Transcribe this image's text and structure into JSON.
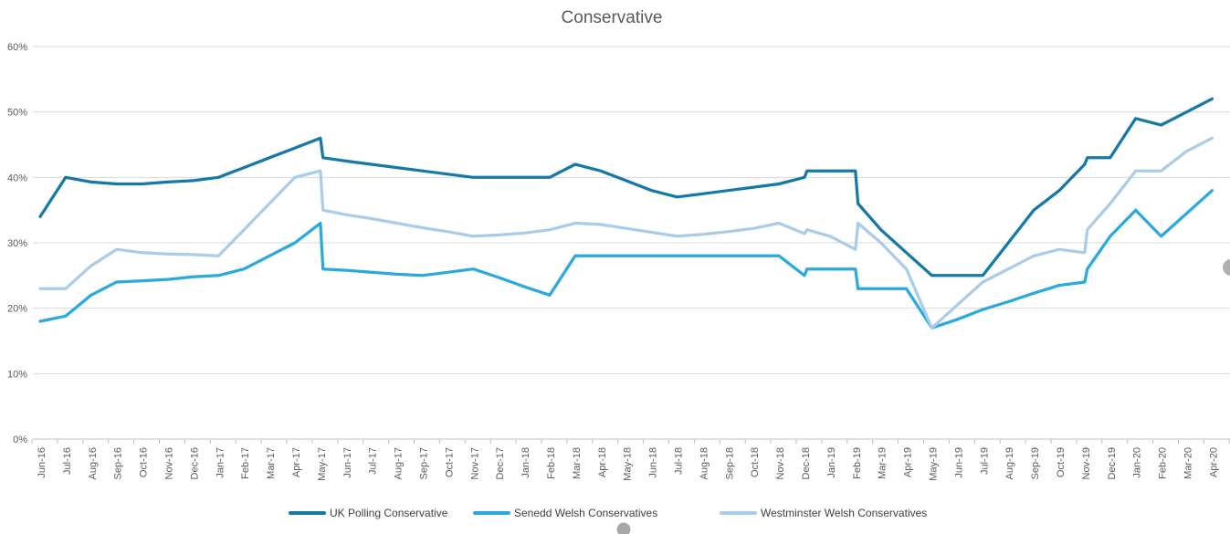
{
  "title": "Conservative",
  "decorations": {
    "side_panel_handle_color": "#b0b0b0",
    "bottom_handle_color": "#a8a8a8"
  },
  "chart_data": {
    "type": "line",
    "title": "Conservative",
    "grid": true,
    "legend_position": "bottom",
    "text_color": "#595959",
    "gridline_color": "#d9d9d9",
    "axis_color": "#bfbfbf",
    "x_axis": {
      "label_rotation": -90,
      "categories": [
        "Jun-16",
        "Jul-16",
        "Aug-16",
        "Sep-16",
        "Oct-16",
        "Nov-16",
        "Dec-16",
        "Jan-17",
        "Feb-17",
        "Mar-17",
        "Apr-17",
        "May-17",
        "Jun-17",
        "Jul-17",
        "Aug-17",
        "Sep-17",
        "Oct-17",
        "Nov-17",
        "Dec-17",
        "Jan-18",
        "Feb-18",
        "Mar-18",
        "Apr-18",
        "May-18",
        "Jun-18",
        "Jul-18",
        "Aug-18",
        "Sep-18",
        "Oct-18",
        "Nov-18",
        "Dec-18",
        "Jan-19",
        "Feb-19",
        "Mar-19",
        "Apr-19",
        "May-19",
        "Jun-19",
        "Jul-19",
        "Aug-19",
        "Sep-19",
        "Oct-19",
        "Nov-19",
        "Dec-19",
        "Jan-20",
        "Feb-20",
        "Mar-20",
        "Apr-20"
      ]
    },
    "y_axis": {
      "min": 0,
      "max": 60,
      "step": 10,
      "tick_labels": [
        "0%",
        "10%",
        "20%",
        "30%",
        "40%",
        "50%",
        "60%"
      ]
    },
    "series": [
      {
        "name": "UK Polling Conservative",
        "color": "#1579A7",
        "points": [
          [
            0,
            34
          ],
          [
            1,
            40
          ],
          [
            2,
            39.3
          ],
          [
            3,
            39
          ],
          [
            4,
            39
          ],
          [
            5,
            39.3
          ],
          [
            6,
            39.5
          ],
          [
            7,
            40
          ],
          [
            8,
            41.5
          ],
          [
            9,
            43
          ],
          [
            10,
            44.5
          ],
          [
            11,
            46
          ],
          [
            11.1,
            43
          ],
          [
            12,
            42.5
          ],
          [
            13,
            42
          ],
          [
            14,
            41.5
          ],
          [
            15,
            41
          ],
          [
            16,
            40.5
          ],
          [
            17,
            40
          ],
          [
            18,
            40
          ],
          [
            19,
            40
          ],
          [
            20,
            40
          ],
          [
            21,
            42
          ],
          [
            22,
            41
          ],
          [
            23,
            39.5
          ],
          [
            24,
            38
          ],
          [
            25,
            37
          ],
          [
            26,
            37.5
          ],
          [
            27,
            38
          ],
          [
            28,
            38.5
          ],
          [
            29,
            39
          ],
          [
            30,
            40
          ],
          [
            30.1,
            41
          ],
          [
            31,
            41
          ],
          [
            32,
            41
          ],
          [
            32.1,
            36
          ],
          [
            33,
            32
          ],
          [
            34,
            28.5
          ],
          [
            35,
            25
          ],
          [
            36,
            25
          ],
          [
            37,
            25
          ],
          [
            38,
            30
          ],
          [
            39,
            35
          ],
          [
            40,
            38
          ],
          [
            41,
            42
          ],
          [
            41.1,
            43
          ],
          [
            42,
            43
          ],
          [
            43,
            49
          ],
          [
            44,
            48
          ],
          [
            45,
            50
          ],
          [
            46,
            52
          ]
        ]
      },
      {
        "name": "Senedd Welsh Conservatives",
        "color": "#29A9E0",
        "points": [
          [
            0,
            18
          ],
          [
            1,
            18.8
          ],
          [
            2,
            22
          ],
          [
            3,
            24
          ],
          [
            4,
            24.2
          ],
          [
            5,
            24.4
          ],
          [
            6,
            24.8
          ],
          [
            7,
            25
          ],
          [
            8,
            26
          ],
          [
            9,
            28
          ],
          [
            10,
            30
          ],
          [
            11,
            33
          ],
          [
            11.1,
            26
          ],
          [
            12,
            25.8
          ],
          [
            13,
            25.5
          ],
          [
            14,
            25.2
          ],
          [
            15,
            25
          ],
          [
            16,
            25.5
          ],
          [
            17,
            26
          ],
          [
            18,
            24.7
          ],
          [
            19,
            23.3
          ],
          [
            20,
            22
          ],
          [
            21,
            28
          ],
          [
            22,
            28
          ],
          [
            23,
            28
          ],
          [
            24,
            28
          ],
          [
            25,
            28
          ],
          [
            26,
            28
          ],
          [
            27,
            28
          ],
          [
            28,
            28
          ],
          [
            29,
            28
          ],
          [
            30,
            25
          ],
          [
            30.1,
            26
          ],
          [
            31,
            26
          ],
          [
            32,
            26
          ],
          [
            32.1,
            23
          ],
          [
            33,
            23
          ],
          [
            34,
            23
          ],
          [
            35,
            17
          ],
          [
            36,
            18.3
          ],
          [
            37,
            19.8
          ],
          [
            38,
            21
          ],
          [
            39,
            22.3
          ],
          [
            40,
            23.5
          ],
          [
            41,
            24
          ],
          [
            41.1,
            26
          ],
          [
            42,
            31
          ],
          [
            43,
            35
          ],
          [
            44,
            31
          ],
          [
            45,
            34.5
          ],
          [
            46,
            38
          ]
        ]
      },
      {
        "name": "Westminster Welsh Conservatives",
        "color": "#A9CCE8",
        "points": [
          [
            0,
            23
          ],
          [
            1,
            23
          ],
          [
            2,
            26.5
          ],
          [
            3,
            29
          ],
          [
            4,
            28.5
          ],
          [
            5,
            28.3
          ],
          [
            6,
            28.2
          ],
          [
            7,
            28
          ],
          [
            8,
            32
          ],
          [
            9,
            36
          ],
          [
            10,
            40
          ],
          [
            11,
            41
          ],
          [
            11.1,
            35
          ],
          [
            12,
            34.3
          ],
          [
            13,
            33.7
          ],
          [
            14,
            33
          ],
          [
            15,
            32.3
          ],
          [
            16,
            31.7
          ],
          [
            17,
            31
          ],
          [
            18,
            31.2
          ],
          [
            19,
            31.5
          ],
          [
            20,
            32
          ],
          [
            21,
            33
          ],
          [
            22,
            32.8
          ],
          [
            23,
            32.2
          ],
          [
            24,
            31.6
          ],
          [
            25,
            31
          ],
          [
            26,
            31.3
          ],
          [
            27,
            31.7
          ],
          [
            28,
            32.2
          ],
          [
            29,
            33
          ],
          [
            30,
            31.4
          ],
          [
            30.1,
            32
          ],
          [
            31,
            31
          ],
          [
            32,
            29
          ],
          [
            32.1,
            33
          ],
          [
            33,
            30
          ],
          [
            34,
            26
          ],
          [
            35,
            17
          ],
          [
            36,
            20.5
          ],
          [
            37,
            24
          ],
          [
            38,
            26
          ],
          [
            39,
            28
          ],
          [
            40,
            29
          ],
          [
            41,
            28.5
          ],
          [
            41.1,
            32
          ],
          [
            42,
            36
          ],
          [
            43,
            41
          ],
          [
            44,
            41
          ],
          [
            45,
            44
          ],
          [
            46,
            46
          ]
        ]
      }
    ]
  }
}
